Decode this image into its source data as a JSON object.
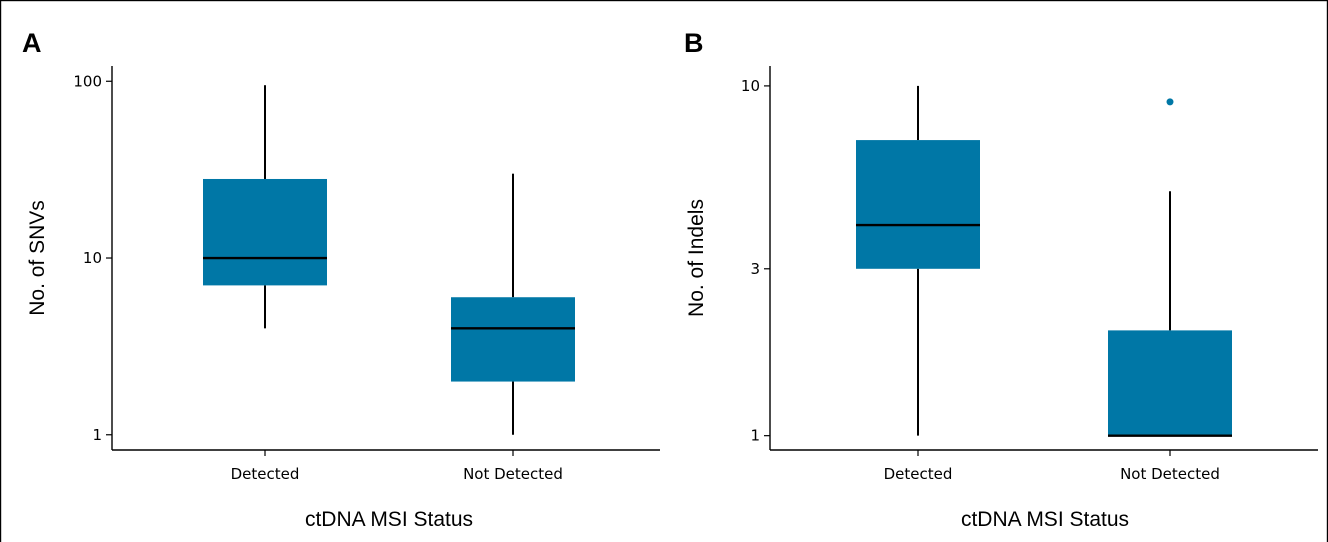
{
  "colors": {
    "box": "#0077a6",
    "outlier": "#0077a6",
    "line": "#000000"
  },
  "chart_data": [
    {
      "type": "boxplot",
      "panel_label": "A",
      "xlabel": "ctDNA MSI Status",
      "ylabel": "No. of SNVs",
      "yscale": "log",
      "ylim": [
        0.82,
        122
      ],
      "yticks": [
        1,
        10,
        100
      ],
      "ytick_labels": [
        "1",
        "10",
        "100"
      ],
      "categories": [
        "Detected",
        "Not Detected"
      ],
      "boxes": [
        {
          "category": "Detected",
          "min": 4,
          "q1": 7,
          "median": 10,
          "q3": 28,
          "max": 95,
          "outliers": []
        },
        {
          "category": "Not Detected",
          "min": 1,
          "q1": 2,
          "median": 4,
          "q3": 6,
          "max": 30,
          "outliers": []
        }
      ]
    },
    {
      "type": "boxplot",
      "panel_label": "B",
      "xlabel": "ctDNA MSI Status",
      "ylabel": "No. of Indels",
      "yscale": "log",
      "ylim": [
        0.91,
        11.4
      ],
      "yticks": [
        1,
        3,
        10
      ],
      "ytick_labels": [
        "1",
        "3",
        "10"
      ],
      "categories": [
        "Detected",
        "Not Detected"
      ],
      "boxes": [
        {
          "category": "Detected",
          "min": 1,
          "q1": 3,
          "median": 4,
          "q3": 7,
          "max": 10,
          "outliers": []
        },
        {
          "category": "Not Detected",
          "min": 1,
          "q1": 1,
          "median": 1,
          "q3": 2,
          "max": 5,
          "outliers": [
            9
          ]
        }
      ]
    }
  ]
}
